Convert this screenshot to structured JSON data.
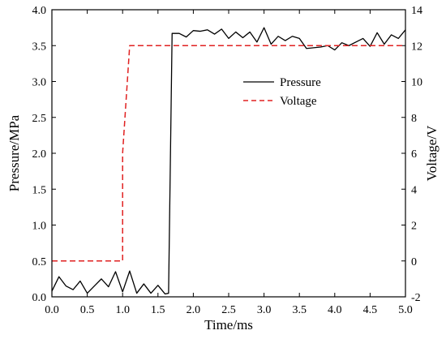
{
  "chart_data": {
    "type": "line",
    "title": "",
    "xlabel": "Time/ms",
    "ylabel_left": "Pressure/MPa",
    "ylabel_right": "Voltage/V",
    "xlim": [
      0,
      5
    ],
    "ylim_left": [
      0,
      4
    ],
    "ylim_right": [
      -2,
      14
    ],
    "x_ticks": [
      "0.0",
      "0.5",
      "1.0",
      "1.5",
      "2.0",
      "2.5",
      "3.0",
      "3.5",
      "4.0",
      "4.5",
      "5.0"
    ],
    "y_left_ticks": [
      "0.0",
      "0.5",
      "1.0",
      "1.5",
      "2.0",
      "2.5",
      "3.0",
      "3.5",
      "4.0"
    ],
    "y_right_ticks": [
      "-2",
      "0",
      "2",
      "4",
      "6",
      "8",
      "10",
      "12",
      "14"
    ],
    "grid": false,
    "legend_position": "upper-middle",
    "series": [
      {
        "name": "Pressure",
        "axis": "left",
        "color": "#000000",
        "style": "solid",
        "x": [
          0.0,
          0.1,
          0.2,
          0.3,
          0.4,
          0.5,
          0.6,
          0.7,
          0.8,
          0.9,
          1.0,
          1.1,
          1.2,
          1.3,
          1.4,
          1.5,
          1.6,
          1.65,
          1.7,
          1.8,
          1.9,
          2.0,
          2.1,
          2.2,
          2.3,
          2.4,
          2.5,
          2.6,
          2.7,
          2.8,
          2.9,
          3.0,
          3.1,
          3.2,
          3.3,
          3.4,
          3.5,
          3.6,
          3.7,
          3.8,
          3.9,
          4.0,
          4.1,
          4.2,
          4.3,
          4.4,
          4.5,
          4.6,
          4.7,
          4.8,
          4.9,
          5.0
        ],
        "values": [
          0.08,
          0.28,
          0.15,
          0.1,
          0.22,
          0.05,
          0.15,
          0.25,
          0.14,
          0.35,
          0.07,
          0.36,
          0.05,
          0.18,
          0.05,
          0.16,
          0.04,
          0.05,
          3.67,
          3.67,
          3.62,
          3.71,
          3.7,
          3.72,
          3.66,
          3.73,
          3.6,
          3.69,
          3.61,
          3.69,
          3.55,
          3.75,
          3.52,
          3.63,
          3.57,
          3.63,
          3.6,
          3.46,
          3.47,
          3.48,
          3.5,
          3.44,
          3.54,
          3.5,
          3.55,
          3.6,
          3.49,
          3.68,
          3.52,
          3.65,
          3.6,
          3.72
        ]
      },
      {
        "name": "Voltage",
        "axis": "right",
        "color": "#e02020",
        "style": "dashed",
        "x": [
          0.0,
          1.0,
          1.0,
          1.1,
          1.1,
          5.0
        ],
        "values": [
          0,
          0,
          6,
          12,
          12,
          12
        ]
      }
    ]
  }
}
